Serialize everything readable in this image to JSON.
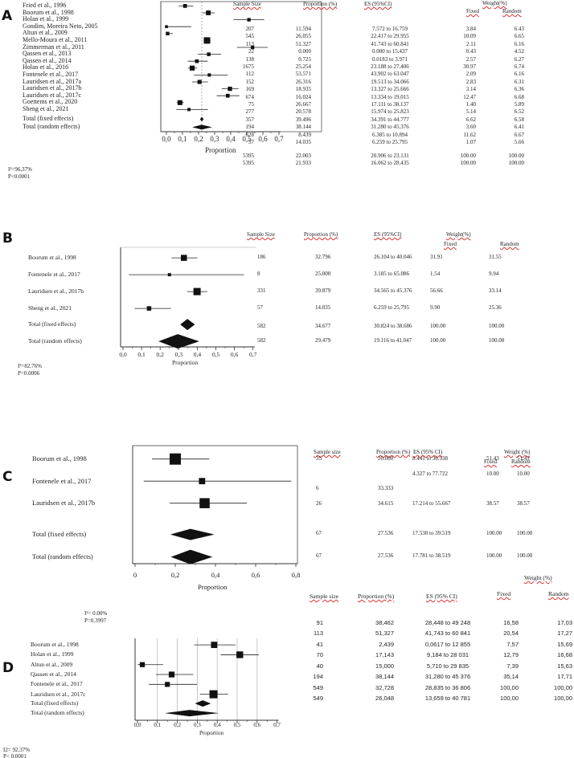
{
  "chart_data": [
    {
      "panel": "A",
      "type": "forest",
      "xlabel": "Proportion",
      "xlim": [
        0,
        0.7
      ],
      "ticks": [
        "0,0",
        "0,1",
        "0,2",
        "0,3",
        "0,4",
        "0,5",
        "0,6",
        "0,7"
      ],
      "headers": {
        "n": "Sample Size",
        "prop": "Proportion (%)",
        "es": "ES (95%CI)",
        "weight": "Weight(%)",
        "fixed": "Fixed",
        "random": "Random"
      },
      "heterogeneity": {
        "i2": "I²=96,37%",
        "p": "P<0.0001"
      },
      "studies": [
        {
          "name": "Fried et al., 1996",
          "n": "207",
          "prop": "11.594",
          "es": "7.572 to 16.759",
          "wf": "3.84",
          "wr": "6.43",
          "est": 0.11594,
          "lo": 0.07572,
          "hi": 0.16759,
          "w": 3.84
        },
        {
          "name": "Boorum et al., 1998",
          "n": "545",
          "prop": "26.055",
          "es": "22.417 to 29.955",
          "wf": "10.09",
          "wr": "6.65",
          "est": 0.26055,
          "lo": 0.22417,
          "hi": 0.29955,
          "w": 10.09
        },
        {
          "name": "Holan et al., 1999",
          "n": "113",
          "prop": "51.327",
          "es": "41.743 to 60.841",
          "wf": "2.11",
          "wr": "6.16",
          "est": 0.51327,
          "lo": 0.41743,
          "hi": 0.60841,
          "w": 2.11
        },
        {
          "name": "Gondim, Moreira Neto, 2005",
          "n": "22",
          "prop": "0.000",
          "es": "0.000 to 15.437",
          "wf": "0.43",
          "wr": "4.52",
          "est": 0,
          "lo": 0,
          "hi": 0.15437,
          "w": 0.43
        },
        {
          "name": "Altun et al., 2009",
          "n": "138",
          "prop": "0.725",
          "es": "0.0183 to 3.971",
          "wf": "2.57",
          "wr": "6.27",
          "est": 0.00725,
          "lo": 0.000183,
          "hi": 0.03971,
          "w": 2.57
        },
        {
          "name": "Mello-Moura et al., 2011",
          "n": "1675",
          "prop": "25.254",
          "es": "23.188 to 27.406",
          "wf": "30.97",
          "wr": "6.74",
          "est": 0.25254,
          "lo": 0.23188,
          "hi": 0.27406,
          "w": 30.97
        },
        {
          "name": "Zimmerman et al., 2011",
          "n": "112",
          "prop": "53.571",
          "es": "43.902 to 63.047",
          "wf": "2.09",
          "wr": "6.16",
          "est": 0.53571,
          "lo": 0.43902,
          "hi": 0.63047,
          "w": 2.09
        },
        {
          "name": "Qassen et al., 2013",
          "n": "152",
          "prop": "26.316",
          "es": "19.513 to 34.066",
          "wf": "2.83",
          "wr": "6.31",
          "est": 0.26316,
          "lo": 0.19513,
          "hi": 0.34066,
          "w": 2.83
        },
        {
          "name": "Qassen et al., 2014",
          "n": "169",
          "prop": "18.935",
          "es": "13.327 to 25.666",
          "wf": "3.14",
          "wr": "6.36",
          "est": 0.18935,
          "lo": 0.13327,
          "hi": 0.25666,
          "w": 3.14
        },
        {
          "name": "Holan et al., 2016",
          "n": "674",
          "prop": "16.024",
          "es": "13.334 to 19.015",
          "wf": "12.47",
          "wr": "6.68",
          "est": 0.16024,
          "lo": 0.13334,
          "hi": 0.19015,
          "w": 12.47
        },
        {
          "name": "Fontenele et al., 2017",
          "n": "75",
          "prop": "26.667",
          "es": "17.111 to 38.137",
          "wf": "1.40",
          "wr": "5.89",
          "est": 0.26667,
          "lo": 0.17111,
          "hi": 0.38137,
          "w": 1.4
        },
        {
          "name": "Lauridsen et al., 2017a",
          "n": "277",
          "prop": "20.578",
          "es": "15.974 to 25.823",
          "wf": "5.14",
          "wr": "6.52",
          "est": 0.20578,
          "lo": 0.15974,
          "hi": 0.25823,
          "w": 5.14
        },
        {
          "name": "Lauridsen et al., 2017b",
          "n": "357",
          "prop": "39.496",
          "es": "34.391 to 44.777",
          "wf": "6.62",
          "wr": "6.58",
          "est": 0.39496,
          "lo": 0.34391,
          "hi": 0.44777,
          "w": 6.62
        },
        {
          "name": "Lauridsen et al., 2017c",
          "n": "194",
          "prop": "38.144",
          "es": "31.280 to 45.376",
          "wf": "3.60",
          "wr": "6.41",
          "est": 0.38144,
          "lo": 0.3128,
          "hi": 0.45376,
          "w": 3.6
        },
        {
          "name": "Goettems et al., 2020",
          "n": "628",
          "prop": "8.439",
          "es": "6.385 to 10.894",
          "wf": "11.62",
          "wr": "6.67",
          "est": 0.08439,
          "lo": 0.06385,
          "hi": 0.10894,
          "w": 11.62
        },
        {
          "name": "Sheng et al., 2021",
          "n": "57",
          "prop": "14.035",
          "es": "6.259 to 25.795",
          "wf": "1.07",
          "wr": "5.66",
          "est": 0.14035,
          "lo": 0.06259,
          "hi": 0.25795,
          "w": 1.07
        }
      ],
      "totals": [
        {
          "name": "Total (fixed effects)",
          "n": "5395",
          "prop": "22.003",
          "es": "20.906 to 23.131",
          "wf": "100.00",
          "wr": "100.00",
          "est": 0.22003,
          "lo": 0.20906,
          "hi": 0.23131
        },
        {
          "name": "Total (random effects)",
          "n": "5395",
          "prop": "21.933",
          "es": "16.062 to 28.435",
          "wf": "100.00",
          "wr": "100.00",
          "est": 0.21933,
          "lo": 0.16062,
          "hi": 0.28435
        }
      ]
    },
    {
      "panel": "B",
      "type": "forest",
      "xlabel": "Proportion",
      "xlim": [
        0,
        0.7
      ],
      "ticks": [
        "0,0",
        "0,1",
        "0,2",
        "0,3",
        "0,4",
        "0,5",
        "0,6",
        "0,7"
      ],
      "headers": {
        "n": "Sample Size",
        "prop": "Proportion (%)",
        "es": "ES (95%CI)",
        "weight": "Weight(%)",
        "fixed": "Fixed",
        "random": "Random"
      },
      "heterogeneity": {
        "i2": "I²=82.76%",
        "p": "P=0.0006"
      },
      "studies": [
        {
          "name": "Boorum et al., 1998",
          "n": "186",
          "prop": "32.796",
          "es": "26.104 to 40.046",
          "wf": "31.91",
          "wr": "31.55",
          "est": 0.32796,
          "lo": 0.26104,
          "hi": 0.40046,
          "w": 31.91
        },
        {
          "name": "Fontenele et al., 2017",
          "n": "8",
          "prop": "25.000",
          "es": "3.185 to 65.086",
          "wf": "1.54",
          "wr": "9.94",
          "est": 0.25,
          "lo": 0.03185,
          "hi": 0.65086,
          "w": 1.54
        },
        {
          "name": "Lauridsen et al., 2017b",
          "n": "331",
          "prop": "39.879",
          "es": "34.565 to 45.376",
          "wf": "56.66",
          "wr": "33.14",
          "est": 0.39879,
          "lo": 0.34565,
          "hi": 0.45376,
          "w": 56.66
        },
        {
          "name": "Sheng et al., 2021",
          "n": "57",
          "prop": "14.035",
          "es": "6.259 to 25.795",
          "wf": "9.90",
          "wr": "25.36",
          "est": 0.14035,
          "lo": 0.06259,
          "hi": 0.25795,
          "w": 9.9
        }
      ],
      "totals": [
        {
          "name": "Total (fixed effects)",
          "n": "582",
          "prop": "34.677",
          "es": "30.824 to 38.686",
          "wf": "100.00",
          "wr": "100.00",
          "est": 0.34677,
          "lo": 0.30824,
          "hi": 0.38686
        },
        {
          "name": "Total (random effects)",
          "n": "582",
          "prop": "29.479",
          "es": "19.116 to 41.047",
          "wf": "100.00",
          "wr": "100.00",
          "est": 0.29479,
          "lo": 0.19116,
          "hi": 0.41047
        }
      ]
    },
    {
      "panel": "C",
      "type": "forest",
      "xlabel": "Proportion",
      "xlim": [
        0,
        0.8
      ],
      "ticks": [
        "0",
        "0,2",
        "0,4",
        "0,6",
        "0,8"
      ],
      "headers": {
        "n": "Sample size",
        "prop": "Proportion (%)",
        "es": "ES (95% CI)",
        "weight": "Weight (%)",
        "fixed": "Fixed",
        "random": "Random"
      },
      "heterogeneity": {
        "i2": "I²= 0.00%",
        "p": "P=0.3997"
      },
      "studies": [
        {
          "name": "Boorum et al., 1998",
          "n": "35",
          "prop": "20.000",
          "es": "8.441 to 36.938",
          "wf": "51.43",
          "wr": "51.43",
          "est": 0.2,
          "lo": 0.08441,
          "hi": 0.36938,
          "w": 51.43
        },
        {
          "name": "Fontenele et al., 2017",
          "n": "6",
          "prop": "33.333",
          "es": "4.327 to 77.722",
          "wf": "10.00",
          "wr": "10.00",
          "est": 0.33333,
          "lo": 0.04327,
          "hi": 0.77722,
          "w": 10.0
        },
        {
          "name": "Lauridsen et al., 2017b",
          "n": "26",
          "prop": "34.615",
          "es": "17.214 to 55.667",
          "wf": "38.57",
          "wr": "38.57",
          "est": 0.34615,
          "lo": 0.17214,
          "hi": 0.55667,
          "w": 38.57
        }
      ],
      "totals": [
        {
          "name": "Total (fixed effects)",
          "n": "67",
          "prop": "27.536",
          "es": "17.530 to 39.519",
          "wf": "100.00",
          "wr": "100.00",
          "est": 0.27536,
          "lo": 0.1753,
          "hi": 0.39519
        },
        {
          "name": "Total (random effects)",
          "n": "67",
          "prop": "27.536",
          "es": "17.781 to 38.519",
          "wf": "100.00",
          "wr": "100.00",
          "est": 0.27536,
          "lo": 0.17781,
          "hi": 0.38519
        }
      ]
    },
    {
      "panel": "D",
      "type": "forest",
      "xlabel": "Proportion",
      "xlim": [
        0,
        0.7
      ],
      "ticks": [
        "0,0",
        "0,1",
        "0,2",
        "0,3",
        "0,4",
        "0,5",
        "0,6",
        "0,7"
      ],
      "headers": {
        "n": "Sample size",
        "prop": "Proportion (%)",
        "es": "ES (95% CI)",
        "weight": "Weight (%)",
        "fixed": "Fixed",
        "random": "Random"
      },
      "heterogeneity": {
        "i2": "I2= 92.37%",
        "p": "P< 0.0001"
      },
      "studies": [
        {
          "name": "Boorum et al., 1998",
          "n": "91",
          "prop": "38,462",
          "es": "28,448 to 49 248",
          "wf": "16,58",
          "wr": "17,03",
          "est": 0.38462,
          "lo": 0.28448,
          "hi": 0.49248,
          "w": 16.58
        },
        {
          "name": "Holan et al., 1999",
          "n": "113",
          "prop": "51,327",
          "es": "41,743 to 60 841",
          "wf": "20,54",
          "wr": "17,27",
          "est": 0.51327,
          "lo": 0.41743,
          "hi": 0.60841,
          "w": 20.54
        },
        {
          "name": "Altun et al., 2009",
          "n": "41",
          "prop": "2,439",
          "es": "0,0617 to 12 855",
          "wf": "7,57",
          "wr": "15,69",
          "est": 0.02439,
          "lo": 0.000617,
          "hi": 0.12855,
          "w": 7.57
        },
        {
          "name": "Qassen et al., 2014",
          "n": "70",
          "prop": "17,143",
          "es": "9,184 to 28 031",
          "wf": "12,79",
          "wr": "16,68",
          "est": 0.17143,
          "lo": 0.09184,
          "hi": 0.28031,
          "w": 12.79
        },
        {
          "name": "Fontenele et al., 2017",
          "n": "40",
          "prop": "15,000",
          "es": "5,710 to 29 835",
          "wf": "7,39",
          "wr": "15,63",
          "est": 0.15,
          "lo": 0.0571,
          "hi": 0.29835,
          "w": 7.39
        },
        {
          "name": "Lauridsen et al., 2017c",
          "n": "194",
          "prop": "38,144",
          "es": "31,280 to 45 376",
          "wf": "35,14",
          "wr": "17,71",
          "est": 0.38144,
          "lo": 0.3128,
          "hi": 0.45376,
          "w": 35.14
        }
      ],
      "totals": [
        {
          "name": "Total (fixed effects)",
          "n": "549",
          "prop": "32,728",
          "es": "28,835 to 36 806",
          "wf": "100,00",
          "wr": "100,00",
          "est": 0.32728,
          "lo": 0.28835,
          "hi": 0.36806
        },
        {
          "name": "Total (random effects)",
          "n": "549",
          "prop": "26,048",
          "es": "13,659 to 40 781",
          "wf": "100,00",
          "wr": "100,00",
          "est": 0.26048,
          "lo": 0.13659,
          "hi": 0.40781
        }
      ]
    }
  ]
}
